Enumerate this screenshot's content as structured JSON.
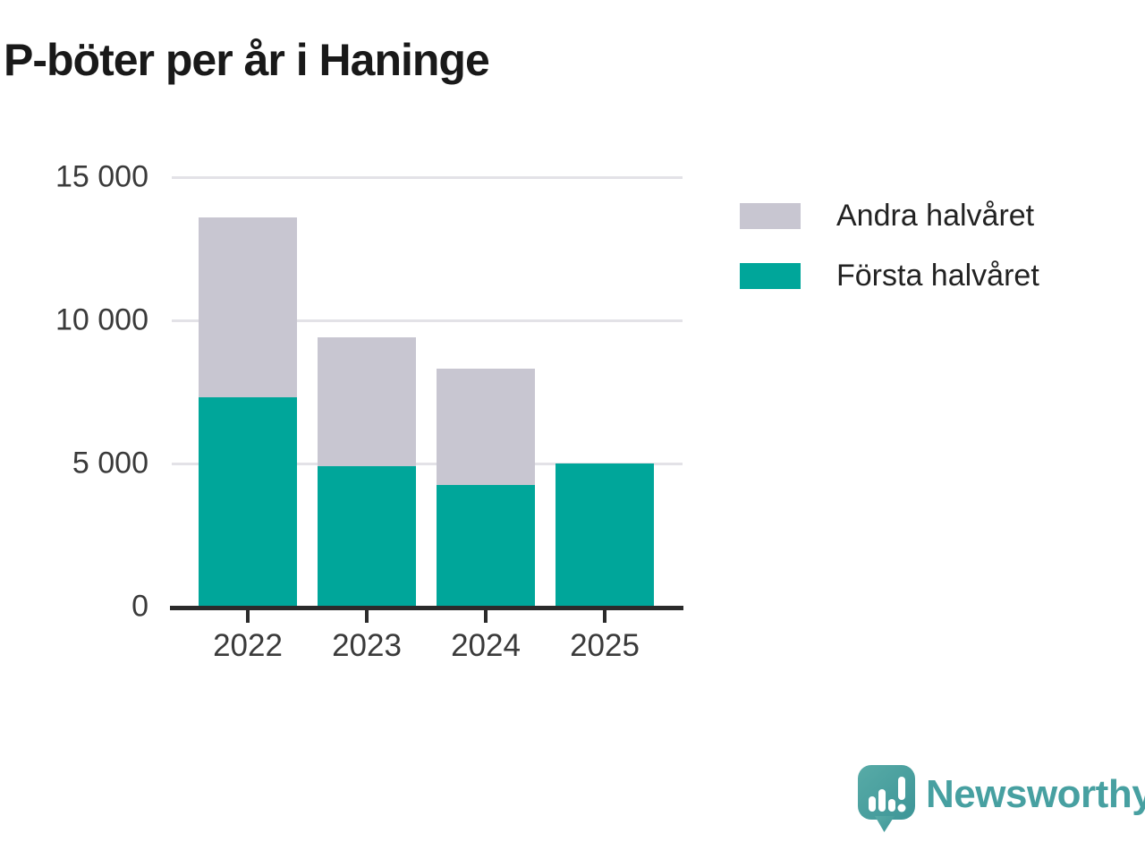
{
  "title": "P-böter per år i Haninge",
  "chart_data": {
    "type": "bar",
    "stacked": true,
    "title": "P-böter per år i Haninge",
    "categories": [
      "2022",
      "2023",
      "2024",
      "2025"
    ],
    "series": [
      {
        "name": "Första halvåret",
        "color": "#00a69a",
        "values": [
          7300,
          4900,
          4250,
          5000
        ]
      },
      {
        "name": "Andra halvåret",
        "color": "#c8c6d1",
        "values": [
          6300,
          4500,
          4050,
          0
        ]
      }
    ],
    "xlabel": "",
    "ylabel": "",
    "ylim": [
      0,
      15000
    ],
    "yticks": [
      0,
      5000,
      10000,
      15000
    ],
    "ytick_labels": [
      "0",
      "5 000",
      "10 000",
      "15 000"
    ],
    "grid": true,
    "legend_position": "top-right"
  },
  "legend": {
    "items": [
      {
        "label": "Andra halvåret",
        "color": "#c8c6d1"
      },
      {
        "label": "Första halvåret",
        "color": "#00a69a"
      }
    ]
  },
  "branding": {
    "logo_text": "Newsworthy",
    "logo_icon": "bar-chart-speech-bubble-icon",
    "brand_color": "#47a0a1"
  },
  "colors": {
    "first_half": "#00a69a",
    "second_half": "#c8c6d1",
    "gridline": "#e3e2e7",
    "axis_line": "#2b2b2b",
    "axis_text": "#3a3a3a",
    "title_text": "#191919",
    "background": "#ffffff"
  }
}
